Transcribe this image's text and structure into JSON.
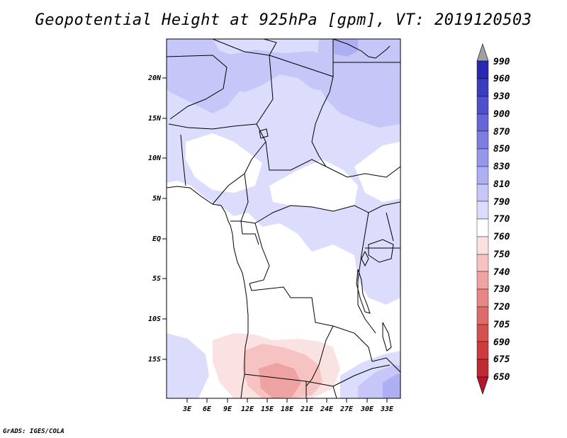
{
  "title": "Geopotential Height at 925hPa [gpm], VT: 2019120503",
  "credit": "GrADS: IGES/COLA",
  "colors": {
    "c650": "#b2182b",
    "c675": "#c02a33",
    "c690": "#cc3c3c",
    "c705": "#d65050",
    "c720": "#de6a6a",
    "c730": "#e68686",
    "c740": "#eea2a2",
    "c750": "#f6c2c2",
    "c760": "#fbe2e2",
    "c770": "#ffffff",
    "c790": "#dcdcfc",
    "c810": "#c6c6f8",
    "c830": "#aeaef2",
    "c850": "#9696ec",
    "c870": "#7e7ee2",
    "c900": "#6666d8",
    "c930": "#5050cc",
    "c960": "#3c3cbe",
    "c990": "#2828b0",
    "above": "#a0a0a0"
  },
  "map": {
    "lat_labels": [
      "20N",
      "15N",
      "10N",
      "5N",
      "EQ",
      "5S",
      "10S",
      "15S"
    ],
    "lon_labels": [
      "3E",
      "6E",
      "9E",
      "12E",
      "15E",
      "18E",
      "21E",
      "24E",
      "27E",
      "30E",
      "33E"
    ]
  },
  "colorbar": {
    "labels": [
      "990",
      "960",
      "930",
      "900",
      "870",
      "850",
      "830",
      "810",
      "790",
      "770",
      "760",
      "750",
      "740",
      "730",
      "720",
      "705",
      "690",
      "675",
      "650"
    ]
  }
}
